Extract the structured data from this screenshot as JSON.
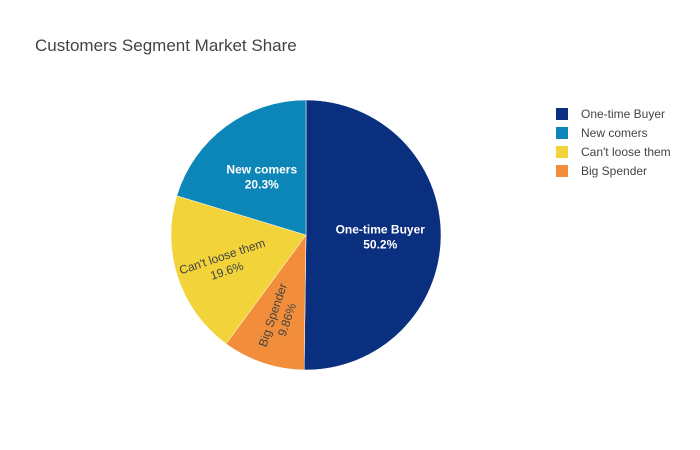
{
  "chart_data": {
    "type": "pie",
    "title": "Customers Segment Market Share",
    "slices": [
      {
        "label": "One-time Buyer",
        "value": 50.2,
        "percent_label": "50.2%",
        "color": "#0b2f7f",
        "text_color": "#ffffff",
        "label_style": "horizontal"
      },
      {
        "label": "Big Spender",
        "value": 9.86,
        "percent_label": "9.86%",
        "color": "#f28e3b",
        "text_color": "#444444",
        "label_style": "radial"
      },
      {
        "label": "Can't loose them",
        "value": 19.6,
        "percent_label": "19.6%",
        "color": "#f2d33a",
        "text_color": "#444444",
        "label_style": "radial"
      },
      {
        "label": "New comers",
        "value": 20.3,
        "percent_label": "20.3%",
        "color": "#0c86b8",
        "text_color": "#ffffff",
        "label_style": "horizontal"
      }
    ],
    "legend": {
      "position": "top-right",
      "order": [
        "One-time Buyer",
        "New comers",
        "Can't loose them",
        "Big Spender"
      ]
    },
    "start_angle_deg": 0,
    "direction": "clockwise"
  }
}
